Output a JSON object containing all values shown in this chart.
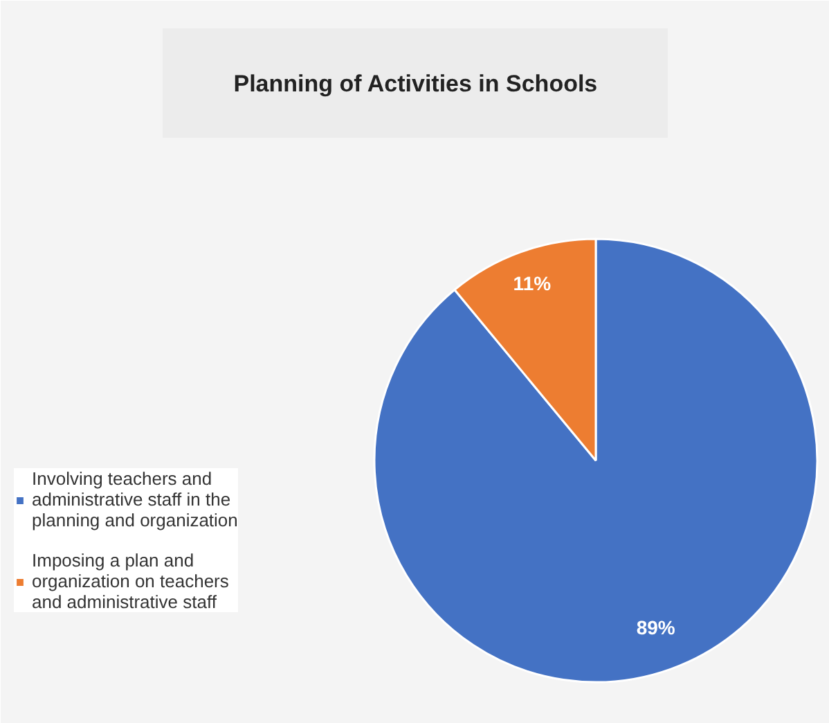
{
  "chart_data": {
    "type": "pie",
    "title": "Planning of Activities in Schools",
    "categories": [
      "Involving teachers and administrative staff in the planning and organization",
      "Imposing a plan and organization on teachers and administrative staff"
    ],
    "values": [
      89,
      11
    ],
    "colors": [
      "#4472c4",
      "#ed7d31"
    ],
    "value_labels": [
      "89%",
      "11%"
    ],
    "legend": "left"
  }
}
